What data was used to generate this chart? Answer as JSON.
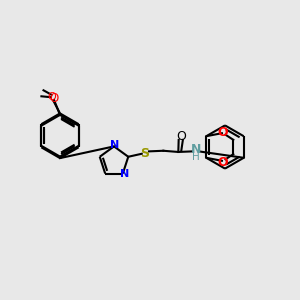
{
  "background_color": "#e8e8e8",
  "lw": 1.5,
  "black": "#000000",
  "blue": "#0000ff",
  "red": "#ff0000",
  "sulfur_color": "#999900",
  "teal": "#5f9ea0",
  "xlim": [
    0,
    10
  ],
  "ylim": [
    0,
    10
  ]
}
